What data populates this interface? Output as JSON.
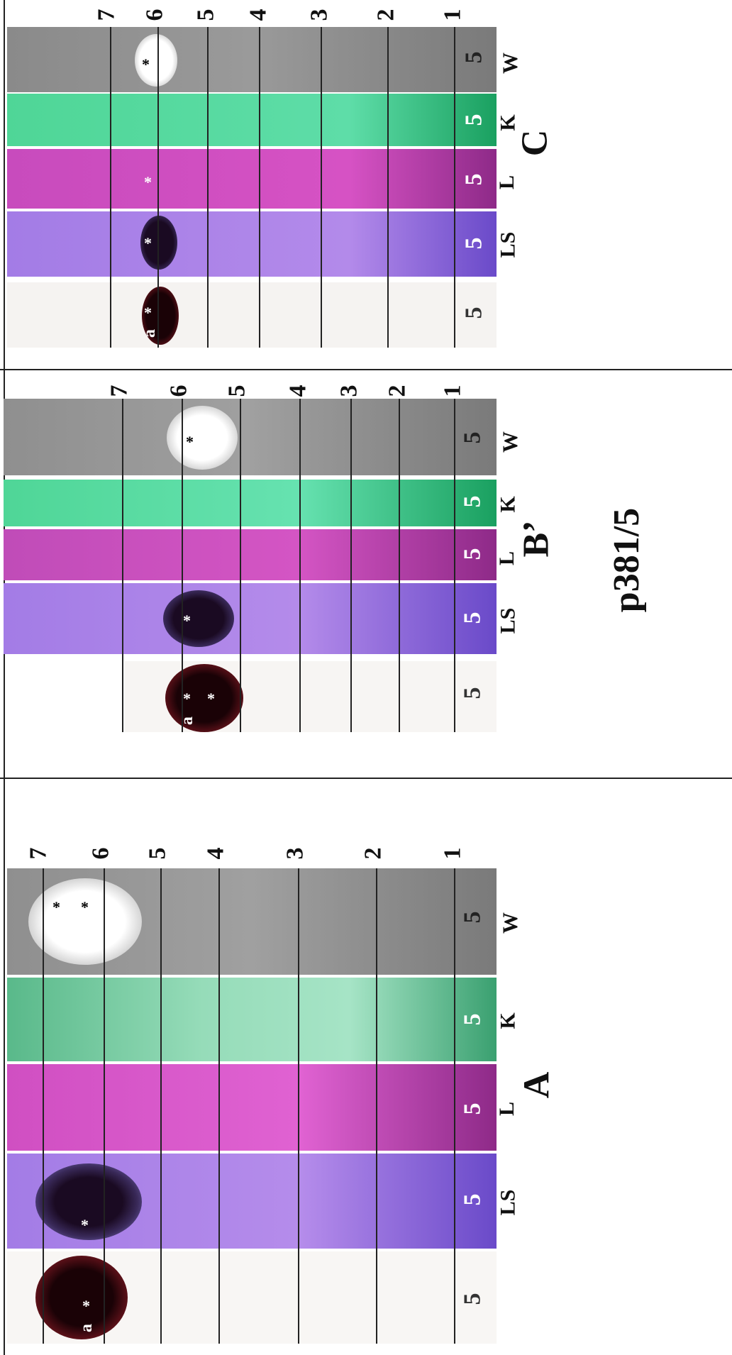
{
  "figure_label": "p381/5",
  "panels": [
    {
      "id": "A",
      "label": "A",
      "lane_labels": [
        "LS",
        "L",
        "K",
        "W"
      ],
      "sample_label": "5",
      "front_numbers": [
        "7",
        "6",
        "5",
        "4",
        "3",
        "2",
        "1"
      ],
      "spot_marks": [
        "a",
        "*"
      ]
    },
    {
      "id": "B",
      "label": "B’",
      "lane_labels": [
        "LS",
        "L",
        "K",
        "W"
      ],
      "sample_label": "5",
      "front_numbers": [
        "7",
        "6",
        "5",
        "4",
        "3",
        "2",
        "1"
      ],
      "spot_marks": [
        "a",
        "*"
      ]
    },
    {
      "id": "C",
      "label": "C",
      "lane_labels": [
        "LS",
        "L",
        "K",
        "W"
      ],
      "sample_label": "5",
      "front_numbers": [
        "7",
        "6",
        "5",
        "4",
        "3",
        "2",
        "1"
      ],
      "spot_marks": [
        "a",
        "*"
      ]
    }
  ],
  "colors": {
    "vis_lane": "#f7f4f2",
    "ls_lane": "#a97be0",
    "l_lane": "#d24fc0",
    "k_lane": "#5cd9a2",
    "w_lane": "#8c8c8c",
    "dark_spot": "#2a0612",
    "white_spot": "#fbfbfb"
  }
}
